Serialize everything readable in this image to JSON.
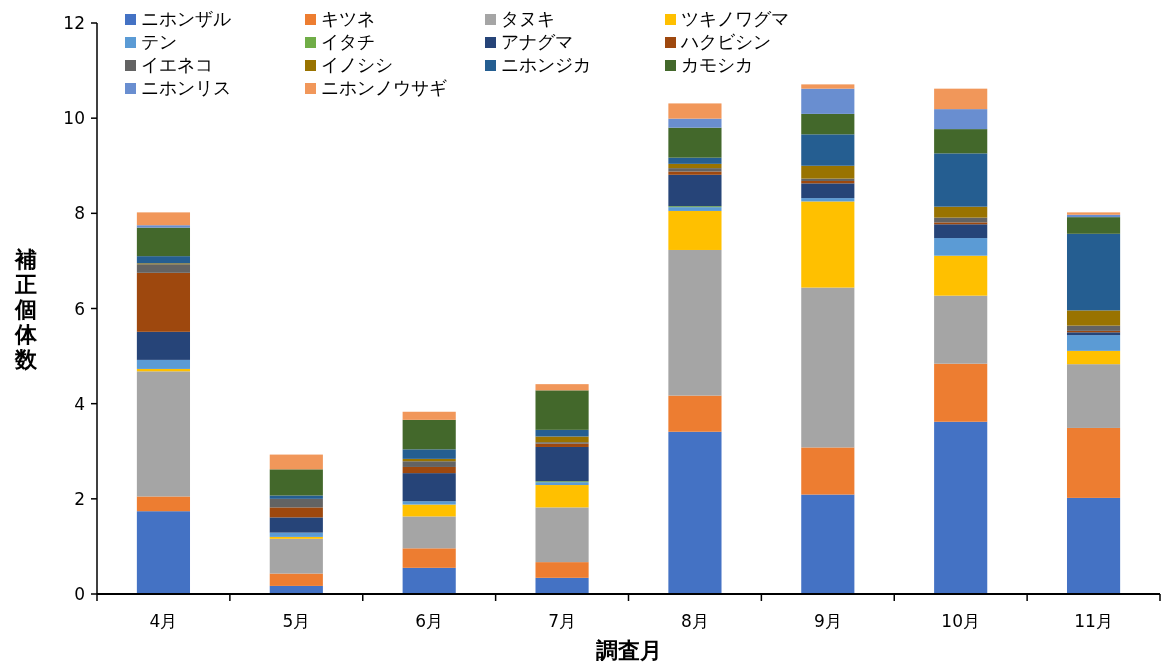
{
  "chart_data": {
    "type": "bar",
    "stacked": true,
    "xlabel": "調査月",
    "ylabel": "補正個体数",
    "categories": [
      "4月",
      "5月",
      "6月",
      "7月",
      "8月",
      "9月",
      "10月",
      "11月"
    ],
    "ylim": [
      0,
      12
    ],
    "yticks": [
      0,
      2,
      4,
      6,
      8,
      10,
      12
    ],
    "grid": false,
    "legend": "top left",
    "series": [
      {
        "name": "ニホンザル",
        "color": "#4472c4",
        "values": [
          1.74,
          0.17,
          0.55,
          0.34,
          3.41,
          2.09,
          3.62,
          2.02
        ]
      },
      {
        "name": "キツネ",
        "color": "#ed7d31",
        "values": [
          0.31,
          0.26,
          0.41,
          0.33,
          0.76,
          0.99,
          1.22,
          1.47
        ]
      },
      {
        "name": "タヌキ",
        "color": "#a5a5a5",
        "values": [
          2.63,
          0.73,
          0.67,
          1.15,
          3.06,
          3.36,
          1.43,
          1.34
        ]
      },
      {
        "name": "ツキノワグマ",
        "color": "#ffc000",
        "values": [
          0.05,
          0.04,
          0.25,
          0.47,
          0.82,
          1.81,
          0.84,
          0.28
        ]
      },
      {
        "name": "テン",
        "color": "#5b9bd5",
        "values": [
          0.19,
          0.09,
          0.07,
          0.06,
          0.08,
          0.07,
          0.37,
          0.33
        ]
      },
      {
        "name": "イタチ",
        "color": "#70ad47",
        "values": [
          0,
          0,
          0,
          0.02,
          0.02,
          0,
          0,
          0
        ]
      },
      {
        "name": "アナグマ",
        "color": "#264478",
        "values": [
          0.59,
          0.32,
          0.59,
          0.72,
          0.66,
          0.31,
          0.29,
          0.06
        ]
      },
      {
        "name": "ハクビシン",
        "color": "#9e480e",
        "values": [
          1.24,
          0.21,
          0.13,
          0.07,
          0.07,
          0.05,
          0.04,
          0.03
        ]
      },
      {
        "name": "イエネコ",
        "color": "#636363",
        "values": [
          0.18,
          0.18,
          0.12,
          0.03,
          0.07,
          0.05,
          0.1,
          0.11
        ]
      },
      {
        "name": "イノシシ",
        "color": "#997300",
        "values": [
          0.02,
          0,
          0.05,
          0.12,
          0.09,
          0.27,
          0.23,
          0.32
        ]
      },
      {
        "name": "ニホンジカ",
        "color": "#255e91",
        "values": [
          0.15,
          0.07,
          0.2,
          0.14,
          0.13,
          0.66,
          1.12,
          1.61
        ]
      },
      {
        "name": "カモシカ",
        "color": "#43682b",
        "values": [
          0.6,
          0.55,
          0.62,
          0.83,
          0.63,
          0.43,
          0.51,
          0.35
        ]
      },
      {
        "name": "ニホンリス",
        "color": "#698ed0",
        "values": [
          0.05,
          0,
          0,
          0,
          0.19,
          0.53,
          0.42,
          0.05
        ]
      },
      {
        "name": "ニホンノウサギ",
        "color": "#f1975a",
        "values": [
          0.27,
          0.31,
          0.17,
          0.13,
          0.32,
          0.09,
          0.43,
          0.05
        ]
      }
    ]
  }
}
